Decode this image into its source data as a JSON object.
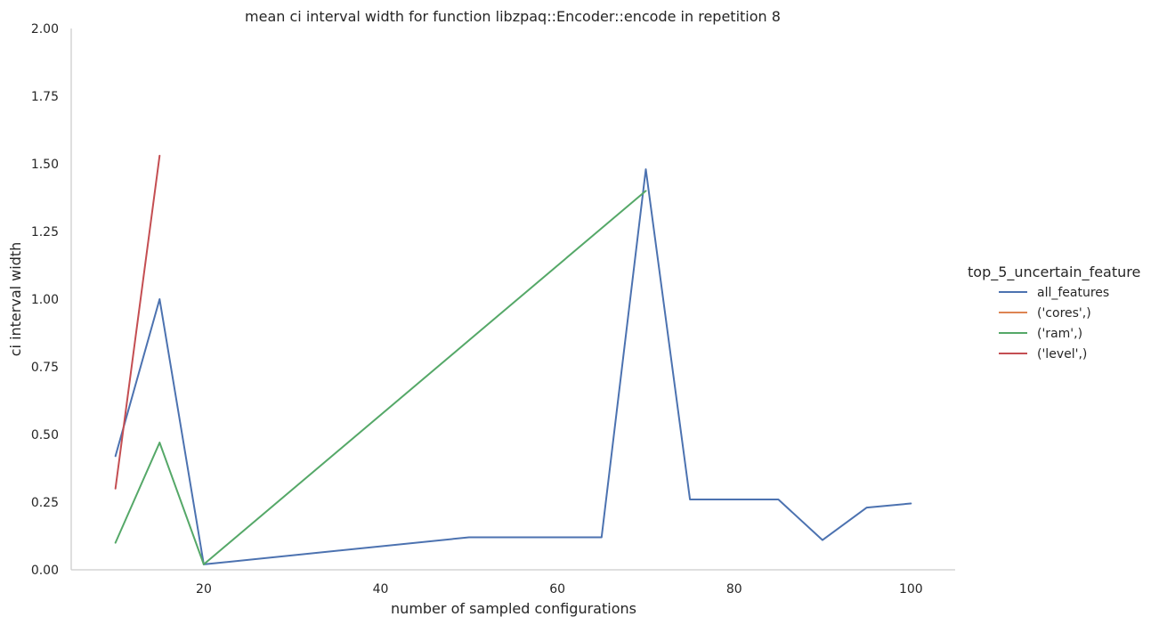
{
  "chart_data": {
    "type": "line",
    "title": "mean ci interval width for function libzpaq::Encoder::encode in repetition 8",
    "xlabel": "number of sampled configurations",
    "ylabel": "ci interval width",
    "xlim": [
      5,
      105
    ],
    "ylim": [
      0,
      2
    ],
    "xticks": [
      20,
      40,
      60,
      80,
      100
    ],
    "yticks": [
      0.0,
      0.25,
      0.5,
      0.75,
      1.0,
      1.25,
      1.5,
      1.75,
      2.0
    ],
    "xtick_labels": [
      "20",
      "40",
      "60",
      "80",
      "100"
    ],
    "ytick_labels": [
      "0.00",
      "0.25",
      "0.50",
      "0.75",
      "1.00",
      "1.25",
      "1.50",
      "1.75",
      "2.00"
    ],
    "grid": false,
    "legend": {
      "title": "top_5_uncertain_feature",
      "placement": "right"
    },
    "series": [
      {
        "name": "all_features",
        "color": "#4c72b0",
        "x": [
          10,
          15,
          20,
          50,
          65,
          70,
          75,
          85,
          90,
          95,
          100
        ],
        "y": [
          0.42,
          1.0,
          0.02,
          0.12,
          0.12,
          1.48,
          0.26,
          0.26,
          0.11,
          0.23,
          0.245
        ]
      },
      {
        "name": "('cores',)",
        "color": "#dd8452",
        "x": [],
        "y": []
      },
      {
        "name": "('ram',)",
        "color": "#55a868",
        "x": [
          10,
          15,
          20,
          70
        ],
        "y": [
          0.1,
          0.47,
          0.02,
          1.4
        ]
      },
      {
        "name": "('level',)",
        "color": "#c44e52",
        "x": [
          10,
          15
        ],
        "y": [
          0.3,
          1.53
        ]
      }
    ]
  }
}
